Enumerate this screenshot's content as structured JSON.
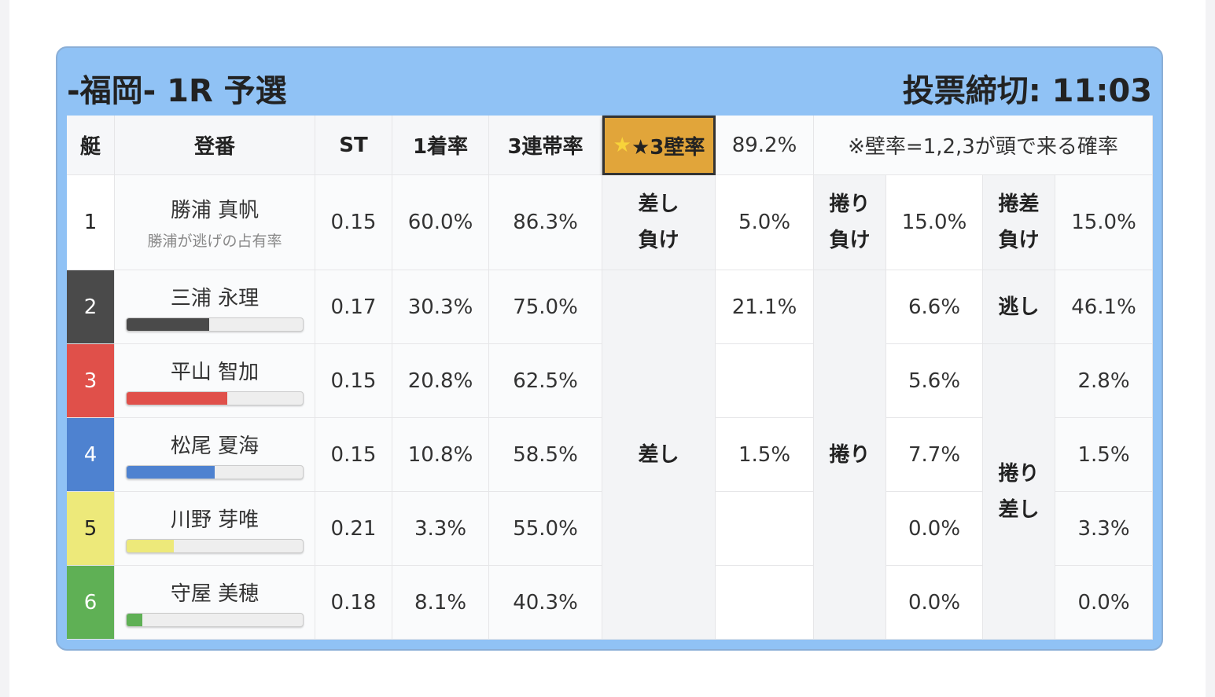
{
  "header": {
    "title": "-福岡- 1R 予選",
    "deadline": "投票締切: 11:03"
  },
  "columns": {
    "boat": "艇",
    "reg": "登番",
    "st": "ST",
    "first": "1着率",
    "top3": "3連帯率",
    "wall_label": "★3壁率",
    "wall_value": "89.2%",
    "note": "※壁率=1,2,3が頭で来る確率"
  },
  "racers": [
    {
      "boat": "1",
      "name": "勝浦 真帆",
      "sub": "勝浦が逃げの占有率",
      "st": "0.15",
      "first": "60.0%",
      "top3": "86.3%",
      "color": "#ffffff",
      "text": "#222222"
    },
    {
      "boat": "2",
      "name": "三浦 永理",
      "st": "0.17",
      "first": "30.3%",
      "top3": "75.0%",
      "color": "#4a4a4a",
      "text": "#ffffff",
      "bar": 0.47
    },
    {
      "boat": "3",
      "name": "平山 智加",
      "st": "0.15",
      "first": "20.8%",
      "top3": "62.5%",
      "color": "#e0504a",
      "text": "#ffffff",
      "bar": 0.57
    },
    {
      "boat": "4",
      "name": "松尾 夏海",
      "st": "0.15",
      "first": "10.8%",
      "top3": "58.5%",
      "color": "#4e82d0",
      "text": "#ffffff",
      "bar": 0.5
    },
    {
      "boat": "5",
      "name": "川野 芽唯",
      "st": "0.21",
      "first": "3.3%",
      "top3": "55.0%",
      "color": "#ede97a",
      "text": "#222222",
      "bar": 0.27
    },
    {
      "boat": "6",
      "name": "守屋 美穂",
      "st": "0.18",
      "first": "8.1%",
      "top3": "40.3%",
      "color": "#5fb055",
      "text": "#ffffff",
      "bar": 0.09
    }
  ],
  "patterns": {
    "sashi_make": "差し負け",
    "sashi": "差し",
    "sashi_vals": [
      "5.0%",
      "21.1%",
      "",
      "1.5%",
      "",
      ""
    ],
    "makuri_make": "捲り負け",
    "makuri": "捲り",
    "makuri_vals": [
      "15.0%",
      "6.6%",
      "5.6%",
      "7.7%",
      "0.0%",
      "0.0%"
    ],
    "makurisashi_make": "捲差負け",
    "nige": "逃し",
    "makurisashi": "捲り差し",
    "ms_vals": [
      "15.0%",
      "46.1%",
      "2.8%",
      "1.5%",
      "3.3%",
      "0.0%"
    ]
  }
}
